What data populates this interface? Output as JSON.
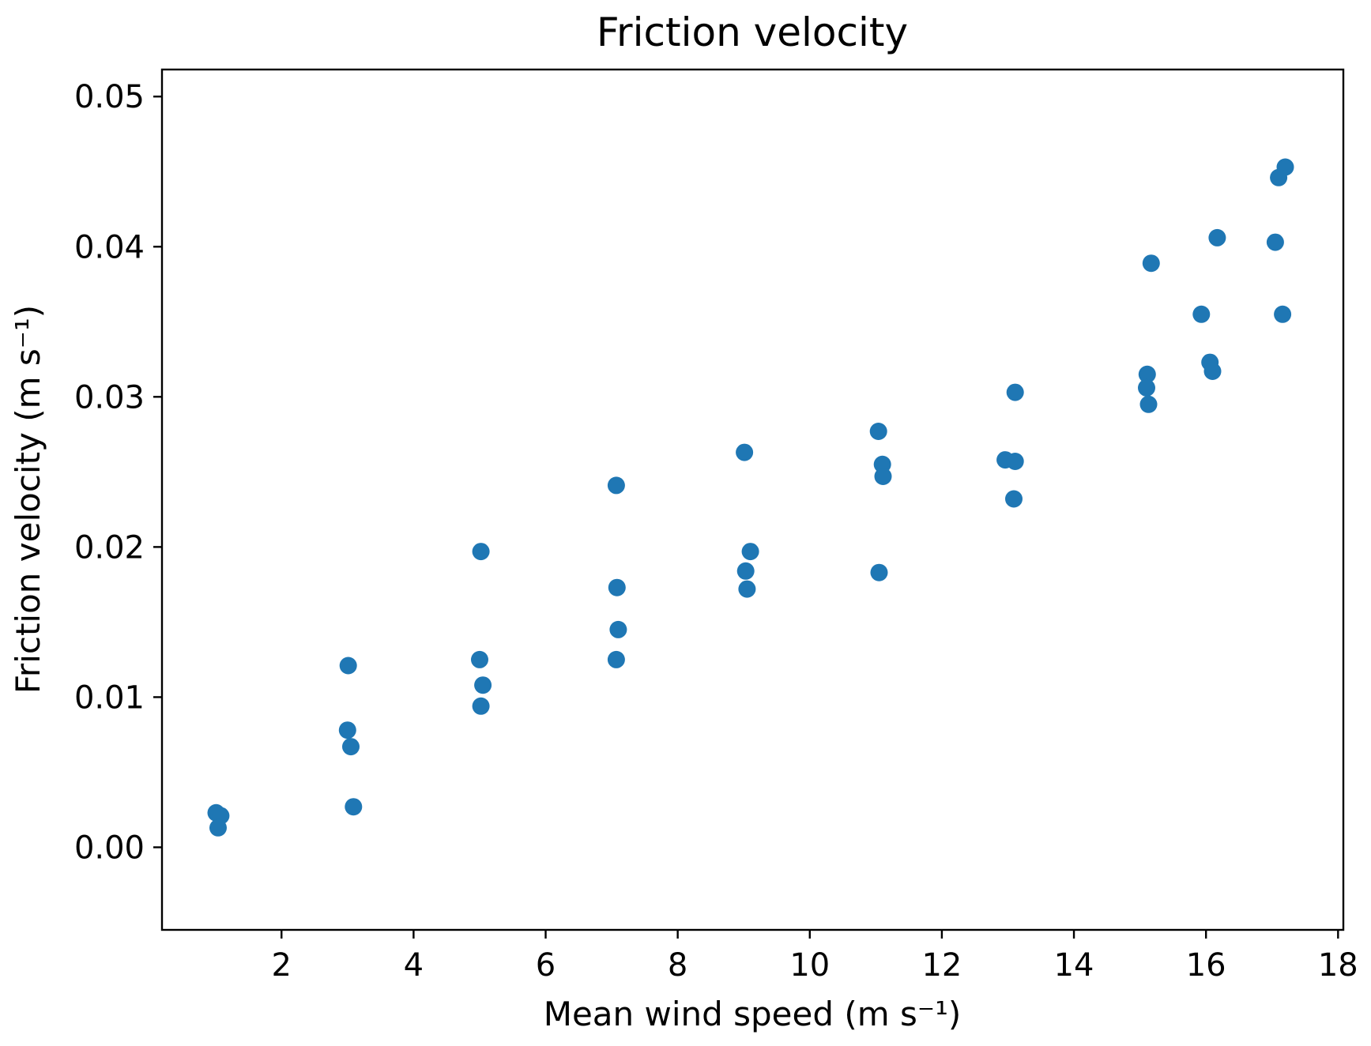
{
  "figure": {
    "background_color": "#ffffff",
    "text_color": "#000000"
  },
  "chart_data": {
    "type": "scatter",
    "title": "Friction velocity",
    "xlabel": "Mean wind speed (m s⁻¹)",
    "ylabel": "Friction velocity (m s⁻¹)",
    "marker_color": "#1f77b4",
    "axis_color": "#000000",
    "grid": false,
    "legend": "none",
    "xlim": [
      0.19,
      18.08
    ],
    "ylim": [
      -0.0055,
      0.0518
    ],
    "xticks": {
      "values": [
        2,
        4,
        6,
        8,
        10,
        12,
        14,
        16,
        18
      ],
      "labels": [
        "2",
        "4",
        "6",
        "8",
        "10",
        "12",
        "14",
        "16",
        "18"
      ]
    },
    "yticks": {
      "values": [
        0.0,
        0.01,
        0.02,
        0.03,
        0.04,
        0.05
      ],
      "labels": [
        "0.00",
        "0.01",
        "0.02",
        "0.03",
        "0.04",
        "0.05"
      ]
    },
    "points": [
      [
        1.01,
        0.0023
      ],
      [
        1.08,
        0.0021
      ],
      [
        1.04,
        0.0013
      ],
      [
        3.01,
        0.0121
      ],
      [
        3.0,
        0.0078
      ],
      [
        3.05,
        0.0067
      ],
      [
        3.09,
        0.0027
      ],
      [
        5.02,
        0.0197
      ],
      [
        5.0,
        0.0125
      ],
      [
        5.05,
        0.0108
      ],
      [
        5.02,
        0.0094
      ],
      [
        7.07,
        0.0241
      ],
      [
        7.08,
        0.0173
      ],
      [
        7.1,
        0.0145
      ],
      [
        7.07,
        0.0125
      ],
      [
        9.01,
        0.0263
      ],
      [
        9.1,
        0.0197
      ],
      [
        9.03,
        0.0184
      ],
      [
        9.05,
        0.0172
      ],
      [
        11.04,
        0.0277
      ],
      [
        11.1,
        0.0255
      ],
      [
        11.11,
        0.0247
      ],
      [
        11.05,
        0.0183
      ],
      [
        13.11,
        0.0303
      ],
      [
        12.96,
        0.0258
      ],
      [
        13.11,
        0.0257
      ],
      [
        13.09,
        0.0232
      ],
      [
        15.17,
        0.0389
      ],
      [
        15.11,
        0.0315
      ],
      [
        15.1,
        0.0306
      ],
      [
        15.13,
        0.0295
      ],
      [
        16.17,
        0.0406
      ],
      [
        15.93,
        0.0355
      ],
      [
        16.06,
        0.0323
      ],
      [
        16.1,
        0.0317
      ],
      [
        17.2,
        0.0453
      ],
      [
        17.1,
        0.0446
      ],
      [
        17.05,
        0.0403
      ],
      [
        17.16,
        0.0355
      ]
    ]
  }
}
